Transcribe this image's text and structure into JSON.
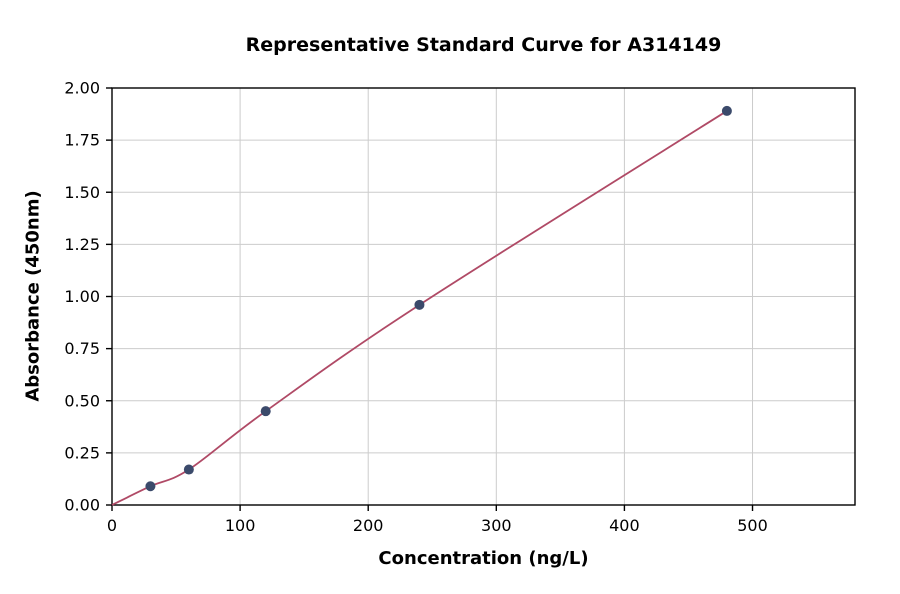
{
  "chart_data": {
    "type": "scatter",
    "title": "Representative Standard Curve for A314149",
    "xlabel": "Concentration (ng/L)",
    "ylabel": "Absorbance (450nm)",
    "x": [
      30,
      60,
      120,
      240,
      480
    ],
    "y": [
      0.09,
      0.17,
      0.45,
      0.96,
      1.89
    ],
    "curve_anchor": [
      0,
      0
    ],
    "xlim": [
      0,
      580
    ],
    "ylim": [
      0,
      2.0
    ],
    "xticks": [
      0,
      100,
      200,
      300,
      400,
      500
    ],
    "yticks": [
      0,
      0.25,
      0.5,
      0.75,
      1.0,
      1.25,
      1.5,
      1.75,
      2.0
    ],
    "grid": true,
    "legend": "none",
    "colors": {
      "point": "#3b4a6b",
      "line": "#b04a66",
      "grid": "#cccccc",
      "frame": "#000000",
      "text": "#000000"
    }
  }
}
